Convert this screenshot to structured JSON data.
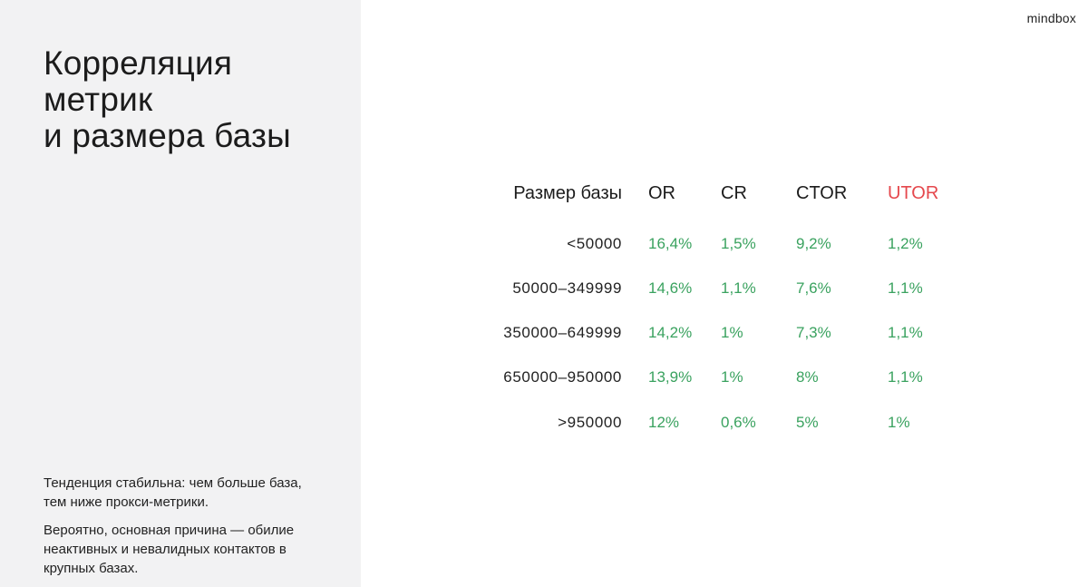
{
  "brand": {
    "logo_text": "mindbox"
  },
  "slide": {
    "title_lines": [
      "Корреляция",
      "метрик",
      "и размера базы"
    ],
    "notes": [
      "Тенденция стабильна:  чем больше база, тем ниже прокси-метрики.",
      "Вероятно, основная причина — обилие неактивных и невалидных контактов в крупных базах."
    ]
  },
  "table": {
    "headers": {
      "size": "Размер базы",
      "or": "OR",
      "cr": "CR",
      "ctor": "CTOR",
      "utor": "UTOR"
    },
    "rows": [
      {
        "size": "<50000",
        "or": "16,4%",
        "cr": "1,5%",
        "ctor": "9,2%",
        "utor": "1,2%"
      },
      {
        "size": "50000–349999",
        "or": "14,6%",
        "cr": "1,1%",
        "ctor": "7,6%",
        "utor": "1,1%"
      },
      {
        "size": "350000–649999",
        "or": "14,2%",
        "cr": "1%",
        "ctor": "7,3%",
        "utor": "1,1%"
      },
      {
        "size": "650000–950000",
        "or": "13,9%",
        "cr": "1%",
        "ctor": "8%",
        "utor": "1,1%"
      },
      {
        "size": ">950000",
        "or": "12%",
        "cr": "0,6%",
        "ctor": "5%",
        "utor": "1%"
      }
    ]
  },
  "colors": {
    "value_green": "#3aa25f",
    "utor_header_red": "#e5484d",
    "sidebar_bg": "#f2f2f3"
  }
}
